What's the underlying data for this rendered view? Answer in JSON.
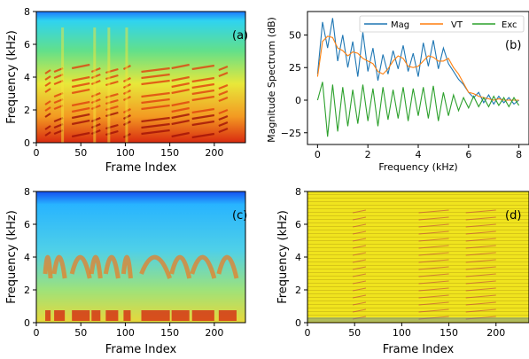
{
  "chart_data": [
    {
      "panel": "(a)",
      "type": "heatmap",
      "description_free": true,
      "xlabel": "Frame Index",
      "ylabel": "Frequency (kHz)",
      "xlim": [
        0,
        235
      ],
      "ylim": [
        0,
        8
      ],
      "xticks": [
        "0",
        "50",
        "100",
        "150",
        "200"
      ],
      "yticks": [
        "0",
        "2",
        "4",
        "6",
        "8"
      ],
      "colormap": "jet"
    },
    {
      "panel": "(b)",
      "type": "line",
      "xlabel": "Frequency (kHz)",
      "ylabel": "Magnitude Spectrum (dB)",
      "xlim": [
        -0.4,
        8.4
      ],
      "ylim": [
        -34,
        68
      ],
      "xticks": [
        "0",
        "2",
        "4",
        "6",
        "8"
      ],
      "yticks": [
        "−25",
        "0",
        "25",
        "50"
      ],
      "legend_position": "top-right",
      "series": [
        {
          "name": "Mag",
          "color": "#1f77b4",
          "x": [
            0,
            0.2,
            0.4,
            0.6,
            0.8,
            1.0,
            1.2,
            1.4,
            1.6,
            1.8,
            2.0,
            2.2,
            2.4,
            2.6,
            2.8,
            3.0,
            3.2,
            3.4,
            3.6,
            3.8,
            4.0,
            4.2,
            4.4,
            4.6,
            4.8,
            5.0,
            5.2,
            5.4,
            5.6,
            5.8,
            6.0,
            6.2,
            6.4,
            6.6,
            6.8,
            7.0,
            7.2,
            7.4,
            7.6,
            7.8,
            8.0
          ],
          "values": [
            20,
            60,
            40,
            63,
            30,
            50,
            25,
            45,
            18,
            52,
            22,
            40,
            15,
            35,
            20,
            38,
            24,
            42,
            22,
            36,
            18,
            44,
            26,
            46,
            24,
            40,
            28,
            22,
            16,
            12,
            6,
            2,
            6,
            -2,
            4,
            -3,
            3,
            -2,
            2,
            -3,
            0
          ]
        },
        {
          "name": "VT",
          "color": "#ff7f0e",
          "x": [
            0,
            0.2,
            0.4,
            0.6,
            0.8,
            1.0,
            1.2,
            1.4,
            1.6,
            1.8,
            2.0,
            2.2,
            2.4,
            2.6,
            2.8,
            3.0,
            3.2,
            3.4,
            3.6,
            3.8,
            4.0,
            4.2,
            4.4,
            4.6,
            4.8,
            5.0,
            5.2,
            5.4,
            5.6,
            5.8,
            6.0,
            6.2,
            6.4,
            6.6,
            6.8,
            7.0,
            7.2,
            7.4,
            7.6,
            7.8,
            8.0
          ],
          "values": [
            18,
            45,
            49,
            48,
            40,
            38,
            34,
            37,
            36,
            32,
            30,
            28,
            22,
            20,
            24,
            30,
            34,
            32,
            26,
            25,
            26,
            30,
            34,
            33,
            30,
            30,
            32,
            25,
            20,
            13,
            6,
            5,
            3,
            2,
            1,
            0,
            1,
            0,
            0,
            0,
            0
          ]
        },
        {
          "name": "Exc",
          "color": "#2ca02c",
          "x": [
            0,
            0.2,
            0.4,
            0.6,
            0.8,
            1.0,
            1.2,
            1.4,
            1.6,
            1.8,
            2.0,
            2.2,
            2.4,
            2.6,
            2.8,
            3.0,
            3.2,
            3.4,
            3.6,
            3.8,
            4.0,
            4.2,
            4.4,
            4.6,
            4.8,
            5.0,
            5.2,
            5.4,
            5.6,
            5.8,
            6.0,
            6.2,
            6.4,
            6.6,
            6.8,
            7.0,
            7.2,
            7.4,
            7.6,
            7.8,
            8.0
          ],
          "values": [
            0,
            14,
            -28,
            12,
            -24,
            10,
            -20,
            8,
            -18,
            12,
            -16,
            9,
            -20,
            10,
            -15,
            8,
            -14,
            10,
            -16,
            9,
            -12,
            10,
            -14,
            11,
            -16,
            6,
            -12,
            4,
            -8,
            2,
            -6,
            3,
            -5,
            2,
            -5,
            3,
            -4,
            2,
            -5,
            2,
            -4
          ]
        }
      ]
    },
    {
      "panel": "(c)",
      "type": "heatmap",
      "xlabel": "Frame Index",
      "ylabel": "Frequency (kHz)",
      "xlim": [
        0,
        235
      ],
      "ylim": [
        0,
        8
      ],
      "xticks": [
        "0",
        "50",
        "100",
        "150",
        "200"
      ],
      "yticks": [
        "0",
        "2",
        "4",
        "6",
        "8"
      ],
      "colormap": "jet"
    },
    {
      "panel": "(d)",
      "type": "heatmap",
      "xlabel": "Frame Index",
      "ylabel": "Frequency (kHz)",
      "xlim": [
        0,
        235
      ],
      "ylim": [
        0,
        8
      ],
      "xticks": [
        "0",
        "50",
        "100",
        "150",
        "200"
      ],
      "yticks": [
        "0",
        "2",
        "4",
        "6",
        "8"
      ],
      "colormap": "jet"
    }
  ]
}
